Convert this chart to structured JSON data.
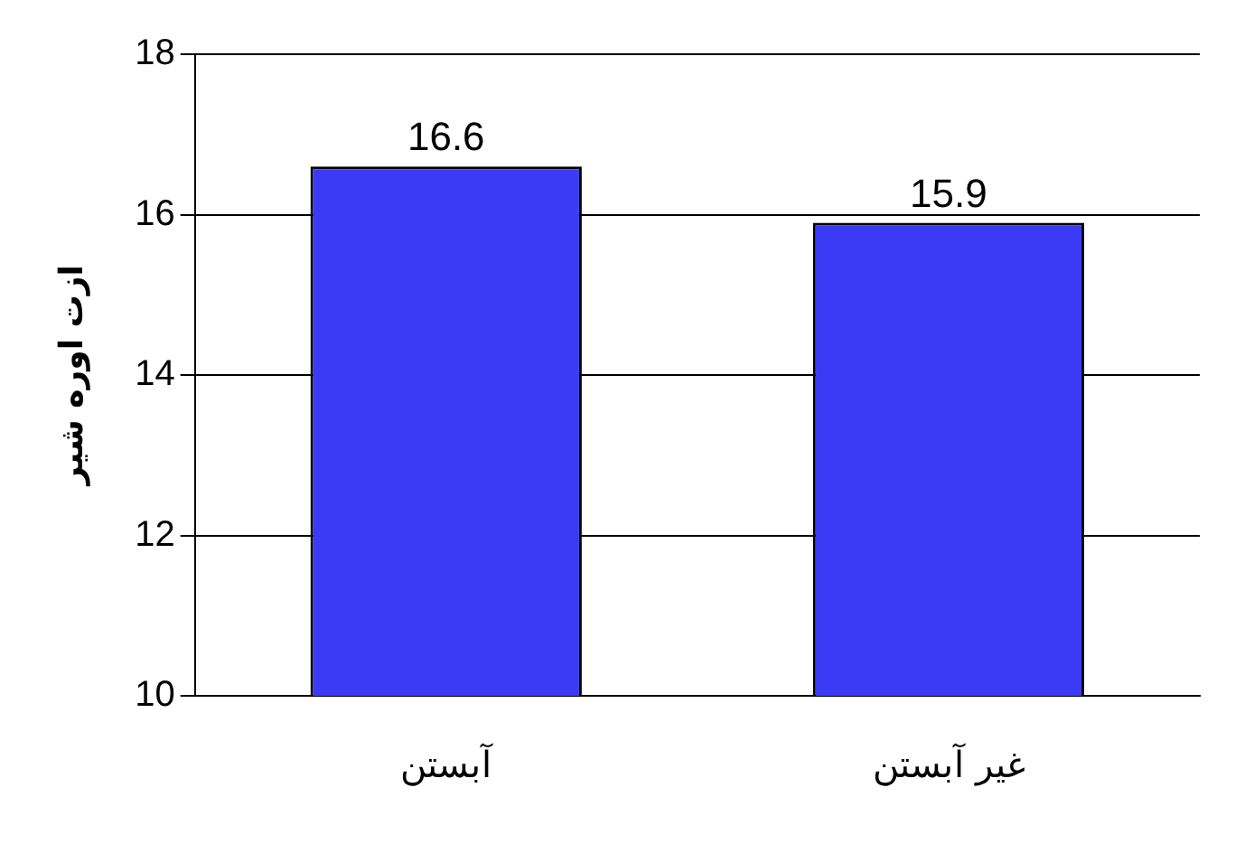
{
  "chart_data": {
    "type": "bar",
    "ylabel": "ازت اوره شیر",
    "categories": [
      "آبستن",
      "غیر آبستن"
    ],
    "values": [
      16.6,
      15.9
    ],
    "color": "#3b3bf5",
    "ylim": [
      10,
      18
    ],
    "yticks": [
      10,
      12,
      14,
      16,
      18
    ],
    "grid": "y",
    "data_labels": true
  }
}
